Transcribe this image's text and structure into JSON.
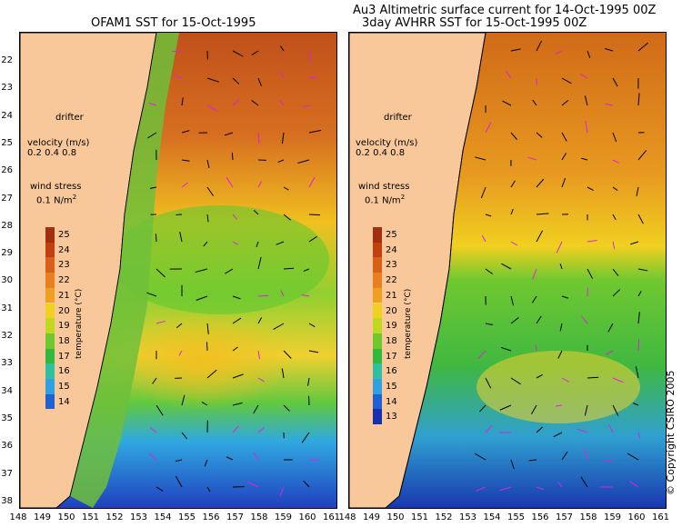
{
  "titles": {
    "left": "OFAM1 SST for 15-Oct-1995",
    "right_line1": "Au3 Altimetric surface current for 14-Oct-1995 00Z",
    "right_line2": "3day AVHRR SST for 15-Oct-1995 00Z"
  },
  "legend": {
    "drifter": "drifter",
    "velocity_label": "velocity (m/s)",
    "velocity_scale": "0.2 0.4 0.8",
    "wind_label": "wind stress",
    "wind_scale": "0.1 N/m",
    "wind_sup": "2"
  },
  "colorbar": {
    "axis_label": "temperature (°C)",
    "left_ticks": [
      "25",
      "24",
      "23",
      "22",
      "21",
      "20",
      "19",
      "18",
      "17",
      "16",
      "15",
      "14"
    ],
    "right_ticks": [
      "25",
      "24",
      "23",
      "22",
      "21",
      "20",
      "19",
      "18",
      "17",
      "16",
      "15",
      "14",
      "13"
    ]
  },
  "latitudes": [
    "22",
    "23",
    "24",
    "25",
    "26",
    "27",
    "28",
    "29",
    "30",
    "31",
    "32",
    "33",
    "34",
    "35",
    "36",
    "37",
    "38"
  ],
  "longitudes": [
    "148",
    "149",
    "150",
    "151",
    "152",
    "153",
    "154",
    "155",
    "156",
    "157",
    "158",
    "159",
    "160",
    "161"
  ],
  "copyright": "© Copyright CSIRO 2005",
  "colors": {
    "land": "#f8c89a",
    "warm": "#b34a10",
    "orange": "#e88a20",
    "yellow": "#f0d020",
    "green": "#40c040",
    "cyan": "#30b0e0",
    "blue": "#2040c0",
    "drifter_arrow": "#e020e0"
  }
}
